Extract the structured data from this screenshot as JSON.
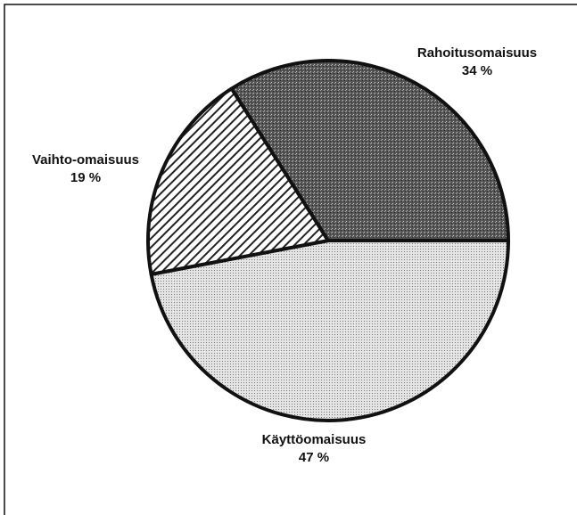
{
  "chart_data": {
    "type": "pie",
    "categories": [
      "Käyttöomaisuus",
      "Vaihto-omaisuus",
      "Rahoitusomaisuus"
    ],
    "values": [
      47,
      19,
      34
    ],
    "value_labels": [
      "47 %",
      "19 %",
      "34 %"
    ]
  }
}
